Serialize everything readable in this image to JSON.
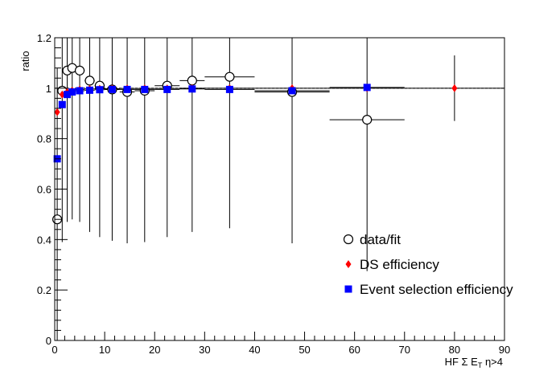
{
  "chart_data": {
    "type": "scatter",
    "title": "",
    "xlabel_parts": {
      "pre": "HF Σ E",
      "sub": "T",
      "post": " η>4"
    },
    "ylabel": "ratio",
    "xlim": [
      0,
      90
    ],
    "ylim": [
      0,
      1.2
    ],
    "x_ticks": [
      0,
      10,
      20,
      30,
      40,
      50,
      60,
      70,
      80,
      90
    ],
    "y_ticks": [
      0,
      0.2,
      0.4,
      0.6,
      0.8,
      1,
      1.2
    ],
    "x_tick_labels": [
      "0",
      "10",
      "20",
      "30",
      "40",
      "50",
      "60",
      "70",
      "80",
      "90"
    ],
    "y_tick_labels": [
      "0",
      "0.2",
      "0.4",
      "0.6",
      "0.8",
      "1",
      "1.2"
    ],
    "reference_line": {
      "y": 1,
      "style": "dashed"
    },
    "legend_position": "lower-right",
    "series": [
      {
        "name": "data/fit",
        "marker": "open-circle",
        "color": "#000000",
        "points": [
          {
            "x": 0.5,
            "y": 0.48,
            "xerr": 0.5,
            "yerr": 0.6
          },
          {
            "x": 1.5,
            "y": 0.99,
            "xerr": 0.5,
            "yerr": 0.6
          },
          {
            "x": 2.5,
            "y": 1.07,
            "xerr": 0.5,
            "yerr": 0.6
          },
          {
            "x": 3.5,
            "y": 1.08,
            "xerr": 0.5,
            "yerr": 0.6
          },
          {
            "x": 5,
            "y": 1.07,
            "xerr": 1,
            "yerr": 0.6
          },
          {
            "x": 7,
            "y": 1.03,
            "xerr": 1,
            "yerr": 0.6
          },
          {
            "x": 9,
            "y": 1.01,
            "xerr": 1,
            "yerr": 0.6
          },
          {
            "x": 11.5,
            "y": 0.995,
            "xerr": 1.5,
            "yerr": 0.6
          },
          {
            "x": 14.5,
            "y": 0.985,
            "xerr": 1.5,
            "yerr": 0.6
          },
          {
            "x": 18,
            "y": 0.99,
            "xerr": 2,
            "yerr": 0.6
          },
          {
            "x": 22.5,
            "y": 1.01,
            "xerr": 2.5,
            "yerr": 0.6
          },
          {
            "x": 27.5,
            "y": 1.03,
            "xerr": 2.5,
            "yerr": 0.6
          },
          {
            "x": 35,
            "y": 1.045,
            "xerr": 5,
            "yerr": 0.6
          },
          {
            "x": 47.5,
            "y": 0.985,
            "xerr": 7.5,
            "yerr": 0.6
          },
          {
            "x": 62.5,
            "y": 0.875,
            "xerr": 7.5,
            "yerr": 0.6
          }
        ]
      },
      {
        "name": "DS efficiency",
        "marker": "diamond",
        "color": "#ff0000",
        "points": [
          {
            "x": 0.5,
            "y": 0.905,
            "xerr": 0.5,
            "yerr": 0
          },
          {
            "x": 1.5,
            "y": 0.975,
            "xerr": 0.5,
            "yerr": 0
          },
          {
            "x": 2.5,
            "y": 0.985,
            "xerr": 0.5,
            "yerr": 0
          },
          {
            "x": 3.5,
            "y": 0.99,
            "xerr": 0.5,
            "yerr": 0
          },
          {
            "x": 5,
            "y": 0.995,
            "xerr": 1,
            "yerr": 0
          },
          {
            "x": 7,
            "y": 0.997,
            "xerr": 1,
            "yerr": 0
          },
          {
            "x": 9,
            "y": 0.998,
            "xerr": 1,
            "yerr": 0
          },
          {
            "x": 11.5,
            "y": 0.998,
            "xerr": 1.5,
            "yerr": 0
          },
          {
            "x": 14.5,
            "y": 0.999,
            "xerr": 1.5,
            "yerr": 0
          },
          {
            "x": 18,
            "y": 0.999,
            "xerr": 2,
            "yerr": 0
          },
          {
            "x": 22.5,
            "y": 0.999,
            "xerr": 2.5,
            "yerr": 0
          },
          {
            "x": 27.5,
            "y": 1.0,
            "xerr": 2.5,
            "yerr": 0
          },
          {
            "x": 35,
            "y": 1.0,
            "xerr": 5,
            "yerr": 0
          },
          {
            "x": 47.5,
            "y": 1.0,
            "xerr": 7.5,
            "yerr": 0
          },
          {
            "x": 62.5,
            "y": 1.0,
            "xerr": 7.5,
            "yerr": 0
          },
          {
            "x": 80,
            "y": 1.0,
            "xerr": 10,
            "yerr": 0.13
          }
        ]
      },
      {
        "name": "Event selection efficiency",
        "marker": "filled-square",
        "color": "#0000ff",
        "points": [
          {
            "x": 0.5,
            "y": 0.72,
            "xerr": 0.5,
            "yerr": 0
          },
          {
            "x": 1.5,
            "y": 0.935,
            "xerr": 0.5,
            "yerr": 0
          },
          {
            "x": 2.5,
            "y": 0.975,
            "xerr": 0.5,
            "yerr": 0
          },
          {
            "x": 3.5,
            "y": 0.985,
            "xerr": 0.5,
            "yerr": 0
          },
          {
            "x": 5,
            "y": 0.99,
            "xerr": 1,
            "yerr": 0
          },
          {
            "x": 7,
            "y": 0.992,
            "xerr": 1,
            "yerr": 0
          },
          {
            "x": 9,
            "y": 0.994,
            "xerr": 1,
            "yerr": 0
          },
          {
            "x": 11.5,
            "y": 0.995,
            "xerr": 1.5,
            "yerr": 0
          },
          {
            "x": 14.5,
            "y": 0.995,
            "xerr": 1.5,
            "yerr": 0
          },
          {
            "x": 18,
            "y": 0.995,
            "xerr": 2,
            "yerr": 0
          },
          {
            "x": 22.5,
            "y": 0.995,
            "xerr": 2.5,
            "yerr": 0
          },
          {
            "x": 27.5,
            "y": 0.997,
            "xerr": 2.5,
            "yerr": 0
          },
          {
            "x": 35,
            "y": 0.995,
            "xerr": 5,
            "yerr": 0
          },
          {
            "x": 47.5,
            "y": 0.99,
            "xerr": 7.5,
            "yerr": 0
          },
          {
            "x": 62.5,
            "y": 1.003,
            "xerr": 7.5,
            "yerr": 0
          }
        ]
      }
    ]
  }
}
